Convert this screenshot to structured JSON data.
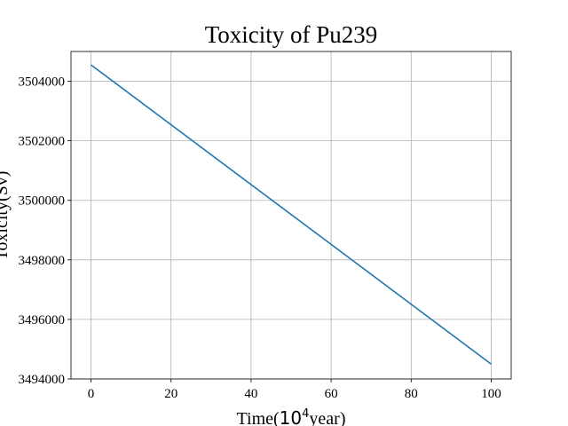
{
  "chart_data": {
    "type": "line",
    "title": "Toxicity of Pu239",
    "xlabel": {
      "prefix": "Time(",
      "base": "10",
      "exponent": "4",
      "suffix": "year)"
    },
    "ylabel": "Toxicity(Sv)",
    "xlim": [
      -5,
      105
    ],
    "ylim": [
      3494000,
      3505000
    ],
    "xticks": [
      0,
      20,
      40,
      60,
      80,
      100
    ],
    "yticks": [
      3494000,
      3496000,
      3498000,
      3500000,
      3502000,
      3504000
    ],
    "grid": true,
    "series": [
      {
        "color": "#1f77b4",
        "x": [
          0,
          100
        ],
        "y": [
          3504550,
          3494500
        ]
      }
    ]
  }
}
